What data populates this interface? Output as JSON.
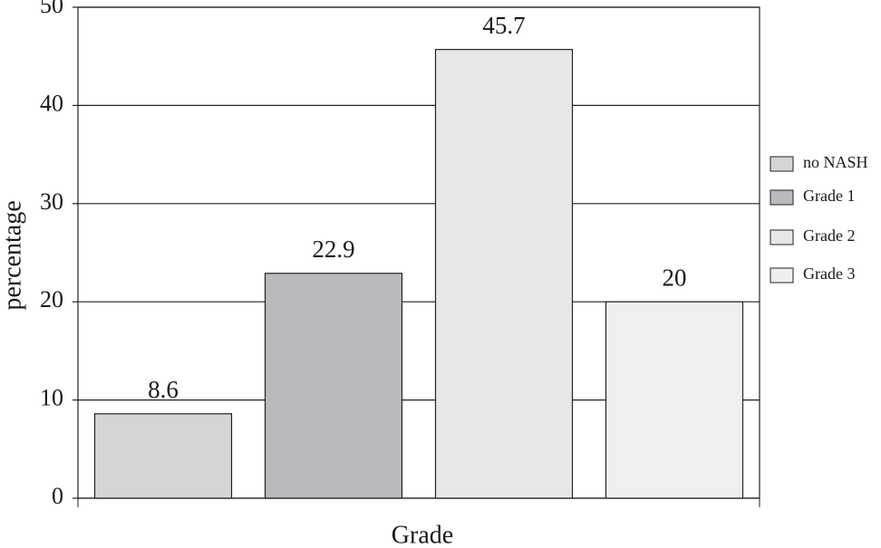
{
  "chart_data": {
    "type": "bar",
    "categories": [
      null,
      null,
      null,
      null
    ],
    "series": [
      {
        "name": "no NASH",
        "color": "#d4d5d7",
        "values": [
          8.6,
          null,
          null,
          null
        ]
      },
      {
        "name": "Grade 1",
        "color": "#b9babd",
        "values": [
          null,
          22.9,
          null,
          null
        ]
      },
      {
        "name": "Grade 2",
        "color": "#e6e7e9",
        "values": [
          null,
          null,
          45.7,
          null
        ]
      },
      {
        "name": "Grade 3",
        "color": "#efeff0",
        "values": [
          null,
          null,
          null,
          20
        ]
      }
    ],
    "xlabel": "Grade",
    "ylabel": "percentage",
    "ylim": [
      0,
      50
    ],
    "yticks": [
      0,
      10,
      20,
      30,
      40,
      50
    ],
    "grid": true,
    "legend": "right"
  }
}
